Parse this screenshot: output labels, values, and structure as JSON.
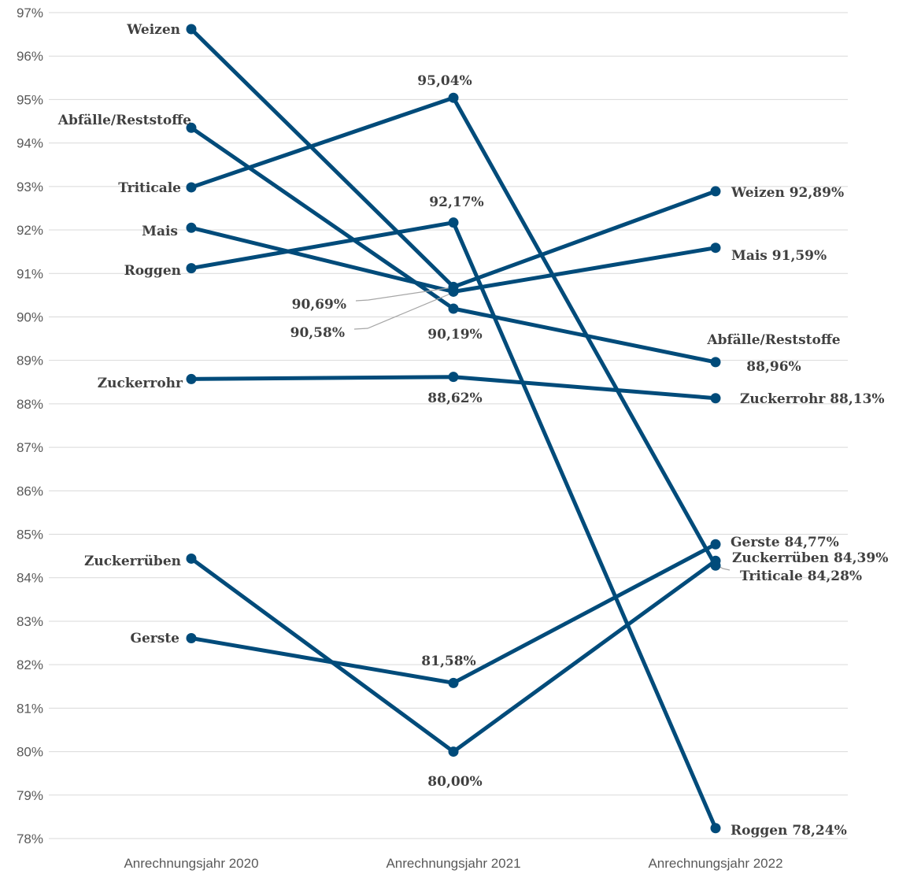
{
  "chart_data": {
    "type": "line",
    "categories": [
      "Anrechnungsjahr 2020",
      "Anrechnungsjahr 2021",
      "Anrechnungsjahr 2022"
    ],
    "ylim": [
      78,
      97
    ],
    "y_ticks": [
      "97%",
      "96%",
      "95%",
      "94%",
      "93%",
      "92%",
      "91%",
      "90%",
      "89%",
      "88%",
      "87%",
      "86%",
      "85%",
      "84%",
      "83%",
      "82%",
      "81%",
      "80%",
      "79%",
      "78%"
    ],
    "y_tick_values": [
      97,
      96,
      95,
      94,
      93,
      92,
      91,
      90,
      89,
      88,
      87,
      86,
      85,
      84,
      83,
      82,
      81,
      80,
      79,
      78
    ],
    "grid": true,
    "line_color": "#004b7a",
    "series": [
      {
        "name": "Weizen",
        "values": [
          96.62,
          90.69,
          92.89
        ]
      },
      {
        "name": "Abfälle/Reststoffe",
        "values": [
          94.35,
          90.19,
          88.96
        ]
      },
      {
        "name": "Triticale",
        "values": [
          92.98,
          95.04,
          84.28
        ]
      },
      {
        "name": "Mais",
        "values": [
          92.05,
          90.58,
          91.59
        ]
      },
      {
        "name": "Roggen",
        "values": [
          91.12,
          92.17,
          78.24
        ]
      },
      {
        "name": "Zuckerrohr",
        "values": [
          88.57,
          88.62,
          88.13
        ]
      },
      {
        "name": "Zuckerrüben",
        "values": [
          84.44,
          80.0,
          84.39
        ]
      },
      {
        "name": "Gerste",
        "values": [
          82.61,
          81.58,
          84.77
        ]
      }
    ],
    "labels_2020": [
      "Weizen",
      "Abfälle/Reststoffe",
      "Triticale",
      "Mais",
      "Roggen",
      "Zuckerrohr",
      "Zuckerrüben",
      "Gerste"
    ],
    "labels_2021": [
      "95,04%",
      "92,17%",
      "90,69%",
      "90,58%",
      "90,19%",
      "88,62%",
      "81,58%",
      "80,00%"
    ],
    "labels_2022": [
      "Weizen 92,89%",
      "Mais 91,59%",
      "Abfälle/Reststoffe",
      "88,96%",
      "Zuckerrohr 88,13%",
      "Gerste 84,77%",
      "Zuckerrüben 84,39%",
      "Triticale 84,28%",
      "Roggen 78,24%"
    ]
  }
}
